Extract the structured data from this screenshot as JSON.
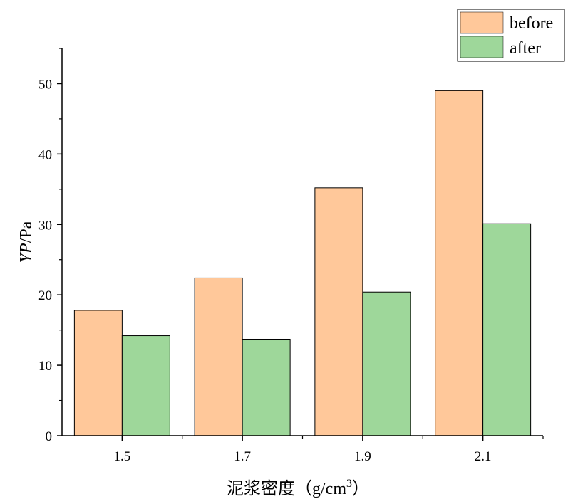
{
  "chart_data": {
    "type": "bar",
    "categories": [
      "1.5",
      "1.7",
      "1.9",
      "2.1"
    ],
    "series": [
      {
        "name": "before",
        "values": [
          17.8,
          22.4,
          35.2,
          49.0
        ],
        "color": "#FFC89A"
      },
      {
        "name": "after",
        "values": [
          14.2,
          13.7,
          20.4,
          30.1
        ],
        "color": "#9ED79A"
      }
    ],
    "xlabel": "泥浆密度（g/cm",
    "xlabel_superscript": "3",
    "xlabel_suffix": "）",
    "ylabel_italic": "YP",
    "ylabel_unit": "/Pa",
    "ylim": [
      0,
      55
    ],
    "yticks": [
      "0",
      "10",
      "20",
      "30",
      "40",
      "50"
    ],
    "ytick_values": [
      0,
      10,
      20,
      30,
      40,
      50
    ],
    "legend_position": "top-right",
    "grid": false
  }
}
